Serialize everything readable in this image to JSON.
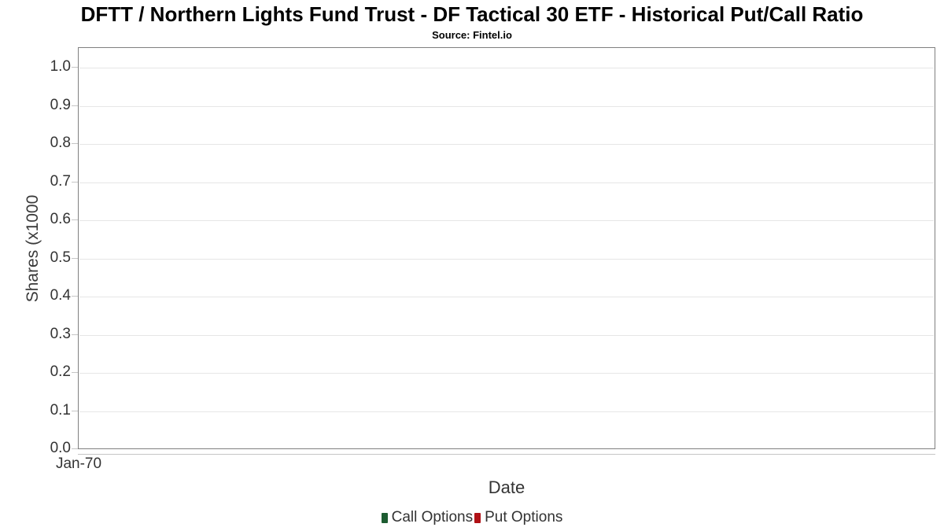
{
  "chart_data": {
    "type": "column",
    "title": "DFTT / Northern Lights Fund Trust - DF Tactical 30 ETF - Historical Put/Call Ratio",
    "subtitle": "Source: Fintel.io",
    "xlabel": "Date",
    "ylabel": "Shares (x1000",
    "ylim": [
      0,
      1.05
    ],
    "grid": "horizontal",
    "legend_position": "bottom-center",
    "y_ticks": [
      {
        "value": 0.0,
        "label": "0.0"
      },
      {
        "value": 0.1,
        "label": "0.1"
      },
      {
        "value": 0.2,
        "label": "0.2"
      },
      {
        "value": 0.3,
        "label": "0.3"
      },
      {
        "value": 0.4,
        "label": "0.4"
      },
      {
        "value": 0.5,
        "label": "0.5"
      },
      {
        "value": 0.6,
        "label": "0.6"
      },
      {
        "value": 0.7,
        "label": "0.7"
      },
      {
        "value": 0.8,
        "label": "0.8"
      },
      {
        "value": 0.9,
        "label": "0.9"
      },
      {
        "value": 1.0,
        "label": "1.0"
      }
    ],
    "x_ticks": [
      {
        "label": "Jan-70"
      }
    ],
    "series": [
      {
        "name": "Call Options",
        "color": "#1d5c31",
        "values": []
      },
      {
        "name": "Put Options",
        "color": "#b01116",
        "values": []
      }
    ],
    "colors": {
      "grid": "#e6e6e6",
      "plot_border": "#7f7f7f",
      "axis_line": "#c6c6c6",
      "tick_text": "#333333",
      "title_text": "#000000"
    }
  }
}
